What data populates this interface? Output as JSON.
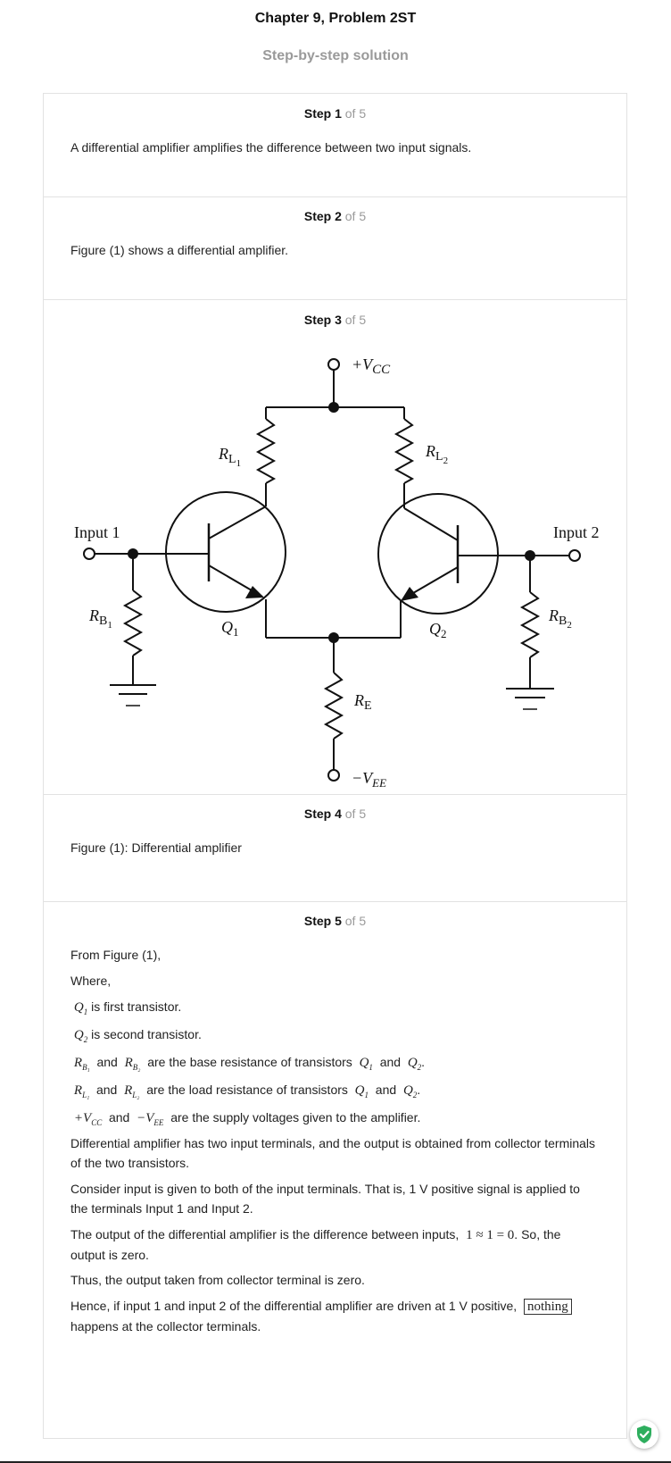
{
  "header": {
    "title": "Chapter 9, Problem 2ST",
    "subtitle": "Step-by-step solution"
  },
  "steps": [
    {
      "num": "Step 1",
      "of": "of 5",
      "text": "A differential amplifier amplifies the difference between two input signals."
    },
    {
      "num": "Step 2",
      "of": "of 5",
      "text": "Figure (1) shows a differential amplifier."
    },
    {
      "num": "Step 3",
      "of": "of 5"
    },
    {
      "num": "Step 4",
      "of": "of 5",
      "text": "Figure (1): Differential amplifier"
    },
    {
      "num": "Step 5",
      "of": "of 5"
    }
  ],
  "figure": {
    "vcc": "+V",
    "vcc_sub": "CC",
    "vee": "−V",
    "vee_sub": "EE",
    "rl1": "R",
    "rl1_sub": "L",
    "rl1_sub2": "1",
    "rl2": "R",
    "rl2_sub": "L",
    "rl2_sub2": "2",
    "rb1": "R",
    "rb1_sub": "B",
    "rb1_sub2": "1",
    "rb2": "R",
    "rb2_sub": "B",
    "rb2_sub2": "2",
    "re": "R",
    "re_sub": "E",
    "q1": "Q",
    "q1_sub": "1",
    "q2": "Q",
    "q2_sub": "2",
    "input1": "Input 1",
    "input2": "Input 2"
  },
  "step5": {
    "from": "From Figure (1),",
    "where": "Where,",
    "q1_text": "is first transistor.",
    "q2_text": "is second transistor.",
    "and": "and",
    "rb_text": "are the base resistance of transistors",
    "rl_text": "are the load resistance of transistors",
    "supply_text": "are the supply voltages given to the amplifier.",
    "para1": "Differential amplifier has two input terminals, and the output is obtained from collector terminals of the two transistors.",
    "para2": "Consider input is given to both of the input terminals. That is, 1 V positive signal is applied to the terminals Input 1 and Input 2.",
    "para3a": "The output of the differential amplifier is the difference between inputs,",
    "para3_eq": "1 ≈ 1 = 0",
    "para3b": ". So, the output is zero.",
    "para4": "Thus, the output taken from collector terminal is zero.",
    "para5a": "Hence, if input 1 and input 2 of the differential amplifier are driven at 1 V positive,",
    "para5_box": "nothing",
    "para5b": "happens at the collector terminals.",
    "sym_q": "Q",
    "sym_q1": "1",
    "sym_q2": "2",
    "sym_r": "R",
    "sym_b1": "B₁",
    "sym_b2": "B₂",
    "sym_l1": "L₁",
    "sym_l2": "L₂",
    "sym_vcc": "+V",
    "sym_cc": "CC",
    "sym_vee": "−V",
    "sym_ee": "EE",
    "period": "."
  }
}
